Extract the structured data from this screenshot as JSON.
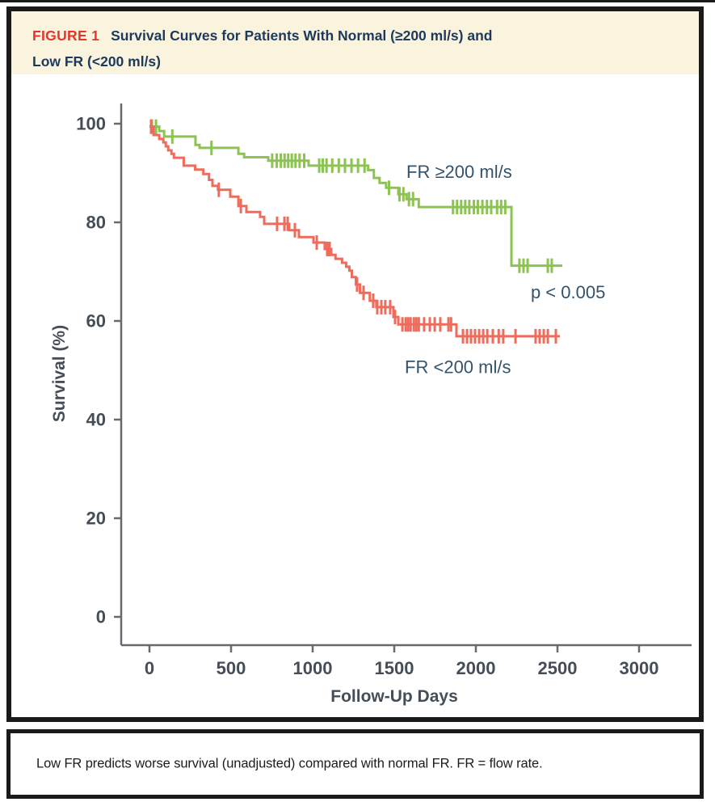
{
  "figure": {
    "label": "FIGURE 1",
    "title_line1": "Survival Curves for Patients With Normal (≥200 ml/s) and",
    "title_line2": "Low FR (<200 ml/s)",
    "caption": "Low FR predicts worse survival (unadjusted) compared with normal FR. FR = flow rate."
  },
  "colors": {
    "header_bg": "#faf3dd",
    "figure_label": "#e5342b",
    "title_text": "#1c3a5e",
    "border": "#1a1a1a",
    "axis": "#66696e",
    "tick_text": "#454e58",
    "annotation_text": "#33536b",
    "normal_fr": "#8cc351",
    "low_fr": "#ef6b5b"
  },
  "chart_data": {
    "type": "line",
    "subtype": "kaplan-meier-step-curves",
    "title": "",
    "xlabel": "Follow-Up Days",
    "ylabel": "Survival (%)",
    "xlim": [
      0,
      3000
    ],
    "ylim": [
      0,
      100
    ],
    "x_ticks": [
      0,
      500,
      1000,
      1500,
      2000,
      2500,
      3000
    ],
    "y_ticks": [
      0,
      20,
      40,
      60,
      80,
      100
    ],
    "grid": false,
    "legend_position": "inline-annotations",
    "series": [
      {
        "name": "FR ≥200 ml/s",
        "color_key": "normal_fr",
        "end_day": 2530,
        "steps": [
          [
            0,
            99.4
          ],
          [
            60,
            98.5
          ],
          [
            90,
            97.4
          ],
          [
            282,
            95.7
          ],
          [
            307,
            95.1
          ],
          [
            545,
            93.9
          ],
          [
            580,
            93.2
          ],
          [
            728,
            92.5
          ],
          [
            975,
            91.5
          ],
          [
            1340,
            90.6
          ],
          [
            1375,
            89.0
          ],
          [
            1410,
            88.0
          ],
          [
            1450,
            87.0
          ],
          [
            1525,
            85.7
          ],
          [
            1575,
            84.7
          ],
          [
            1650,
            83.1
          ],
          [
            2218,
            71.2
          ]
        ],
        "censor_days": [
          15,
          40,
          140,
          380,
          752,
          780,
          805,
          828,
          850,
          872,
          895,
          920,
          948,
          1040,
          1062,
          1085,
          1120,
          1160,
          1198,
          1238,
          1278,
          1318,
          1468,
          1532,
          1556,
          1590,
          1615,
          1860,
          1885,
          1910,
          1935,
          1960,
          1988,
          2012,
          2040,
          2068,
          2094,
          2130,
          2155,
          2180,
          2267,
          2292,
          2317,
          2441,
          2465
        ]
      },
      {
        "name": "FR <200 ml/s",
        "color_key": "low_fr",
        "end_day": 2515,
        "steps": [
          [
            0,
            99.4
          ],
          [
            25,
            97.7
          ],
          [
            60,
            96.9
          ],
          [
            85,
            96.2
          ],
          [
            100,
            95.4
          ],
          [
            115,
            94.6
          ],
          [
            135,
            93.9
          ],
          [
            150,
            93.1
          ],
          [
            210,
            91.5
          ],
          [
            280,
            90.7
          ],
          [
            330,
            89.8
          ],
          [
            365,
            88.6
          ],
          [
            386,
            87.4
          ],
          [
            420,
            86.6
          ],
          [
            495,
            85.2
          ],
          [
            545,
            83.3
          ],
          [
            594,
            82.1
          ],
          [
            678,
            81.1
          ],
          [
            703,
            79.7
          ],
          [
            856,
            78.4
          ],
          [
            916,
            77.0
          ],
          [
            1005,
            75.9
          ],
          [
            1074,
            74.6
          ],
          [
            1114,
            73.4
          ],
          [
            1140,
            72.6
          ],
          [
            1180,
            71.8
          ],
          [
            1205,
            71.0
          ],
          [
            1225,
            70.2
          ],
          [
            1240,
            68.9
          ],
          [
            1265,
            67.4
          ],
          [
            1290,
            65.7
          ],
          [
            1350,
            64.1
          ],
          [
            1390,
            62.8
          ],
          [
            1495,
            60.8
          ],
          [
            1525,
            59.3
          ],
          [
            1881,
            56.9
          ]
        ],
        "censor_days": [
          10,
          425,
          560,
          782,
          827,
          847,
          891,
          1025,
          1089,
          1104,
          1272,
          1312,
          1371,
          1396,
          1421,
          1445,
          1475,
          1505,
          1550,
          1570,
          1585,
          1600,
          1620,
          1635,
          1650,
          1683,
          1718,
          1748,
          1782,
          1832,
          1848,
          1921,
          1946,
          1970,
          1995,
          2020,
          2045,
          2070,
          2104,
          2140,
          2168,
          2243,
          2366,
          2391,
          2416,
          2441,
          2490
        ]
      }
    ],
    "annotations": [
      {
        "id": "normal-fr-label",
        "text": "FR ≥200 ml/s",
        "day": 1898,
        "pct": 90.2
      },
      {
        "id": "low-fr-label",
        "text": "FR <200 ml/s",
        "day": 1890,
        "pct": 50.6
      },
      {
        "id": "p-value",
        "text": "p < 0.005",
        "day": 2565,
        "pct": 65.7
      }
    ]
  }
}
